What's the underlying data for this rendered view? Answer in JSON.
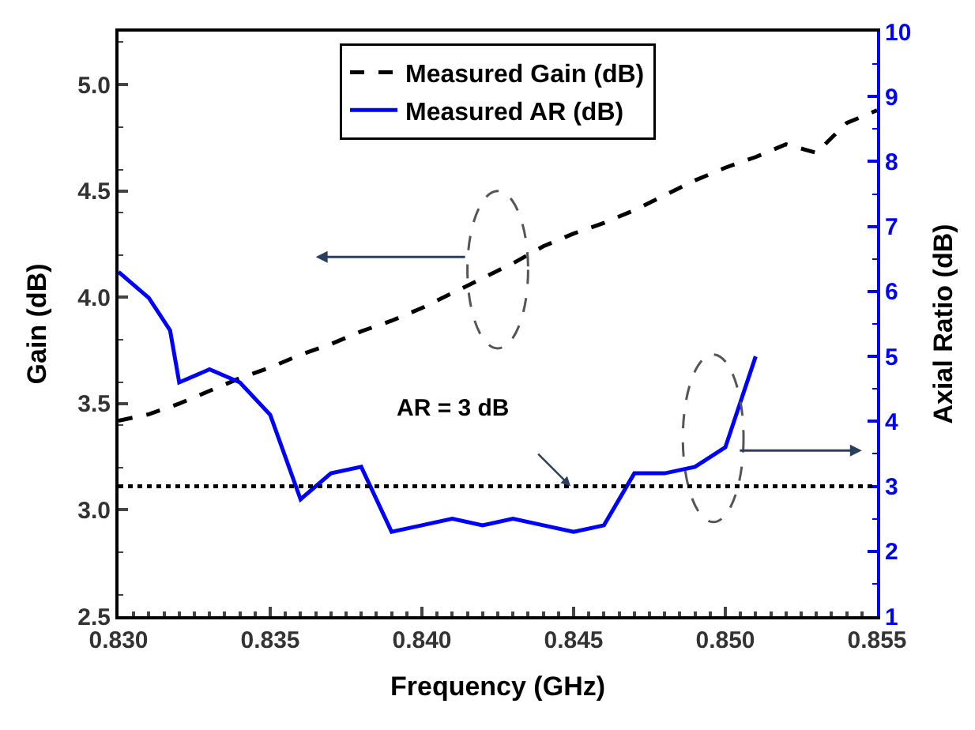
{
  "chart_data": {
    "type": "line",
    "xlabel": "Frequency (GHz)",
    "ylabel": "Gain (dB)",
    "y2label": "Axial Ratio (dB)",
    "xlim": [
      0.83,
      0.855
    ],
    "xticks": [
      {
        "value": 0.83,
        "label": "0.830"
      },
      0.835,
      {
        "value": 0.84,
        "label": "0.840"
      },
      0.845,
      {
        "value": 0.85,
        "label": "0.850"
      },
      0.855
    ],
    "ylim": [
      2.5,
      5.25
    ],
    "yticks": [
      2.5,
      {
        "value": 3,
        "label": "3.0"
      },
      3.5,
      {
        "value": 4,
        "label": "4.0"
      },
      4.5,
      {
        "value": 5,
        "label": "5.0"
      }
    ],
    "y2lim": [
      1,
      10
    ],
    "y2ticks": [
      1,
      2,
      3,
      4,
      5,
      6,
      7,
      8,
      9,
      10
    ],
    "legend": "top",
    "marker": "none",
    "series": [
      {
        "name": "Measured Gain (dB)",
        "color": "#000000",
        "line_style": "dashed",
        "x": [
          0.83,
          0.831,
          0.832,
          0.833,
          0.834,
          0.835,
          0.836,
          0.837,
          0.838,
          0.839,
          0.84,
          0.841,
          0.842,
          0.843,
          0.844,
          0.845,
          0.846,
          0.847,
          0.848,
          0.849,
          0.85,
          0.851,
          0.852,
          0.853,
          0.854,
          0.855
        ],
        "values": [
          3.42,
          3.45,
          3.5,
          3.56,
          3.62,
          3.67,
          3.73,
          3.78,
          3.84,
          3.89,
          3.95,
          4.02,
          4.09,
          4.16,
          4.24,
          4.3,
          4.35,
          4.41,
          4.48,
          4.55,
          4.61,
          4.66,
          4.72,
          4.68,
          4.82,
          4.88
        ]
      },
      {
        "name": "Measured AR (dB)",
        "color": "#0000ff",
        "line_style": "solid",
        "axis": "y2",
        "x": [
          0.83,
          0.831,
          0.8317,
          0.832,
          0.833,
          0.834,
          0.835,
          0.836,
          0.837,
          0.838,
          0.839,
          0.84,
          0.841,
          0.842,
          0.843,
          0.844,
          0.845,
          0.846,
          0.847,
          0.848,
          0.849,
          0.85,
          0.851
        ],
        "values": [
          6.3,
          5.9,
          5.4,
          4.6,
          4.8,
          4.6,
          4.1,
          2.8,
          3.2,
          3.3,
          2.3,
          2.4,
          2.5,
          2.4,
          2.5,
          2.4,
          2.3,
          2.4,
          3.2,
          3.2,
          3.3,
          3.6,
          5.0
        ]
      }
    ],
    "ref_lines": [
      {
        "axis": "y2",
        "value": 3,
        "color": "#000000",
        "line_style": "dotted"
      }
    ],
    "annotations": [
      "AR = 3 dB"
    ]
  }
}
